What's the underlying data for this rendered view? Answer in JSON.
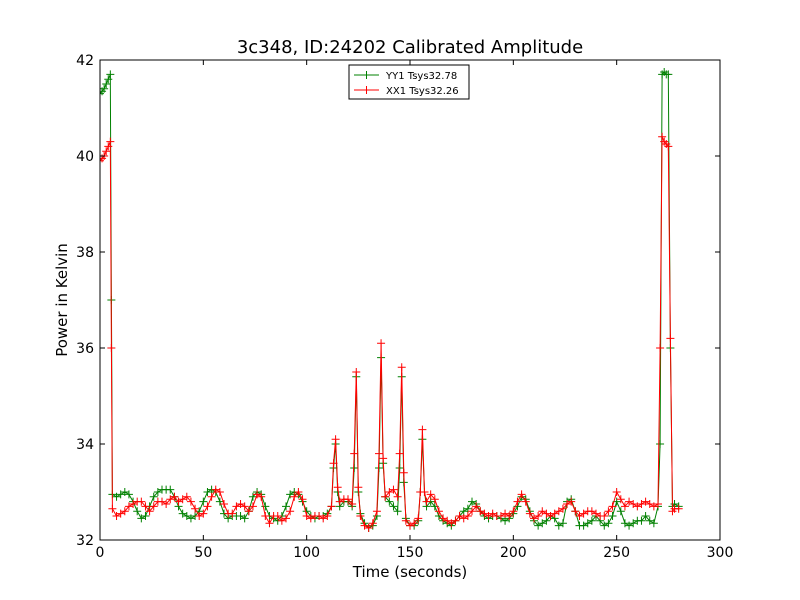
{
  "chart_data": {
    "type": "line",
    "title": "3c348, ID:24202 Calibrated Amplitude",
    "xlabel": "Time (seconds)",
    "ylabel": "Power in Kelvin",
    "xlim": [
      0,
      300
    ],
    "ylim": [
      32,
      42
    ],
    "xticks": [
      0,
      50,
      100,
      150,
      200,
      250,
      300
    ],
    "yticks": [
      32,
      34,
      36,
      38,
      40,
      42
    ],
    "grid": false,
    "legend_position": "top-center",
    "marker": "+",
    "series": [
      {
        "name": "YY1 Tsys32.78",
        "color": "#008000",
        "x": [
          0,
          1,
          2,
          3,
          4,
          5,
          5.5,
          6,
          8,
          10,
          12,
          14,
          16,
          18,
          20,
          22,
          24,
          26,
          28,
          30,
          32,
          34,
          36,
          38,
          40,
          42,
          44,
          46,
          48,
          50,
          52,
          54,
          56,
          58,
          60,
          62,
          64,
          66,
          68,
          70,
          72,
          74,
          76,
          78,
          80,
          82,
          84,
          86,
          88,
          90,
          92,
          94,
          96,
          98,
          100,
          102,
          104,
          106,
          108,
          110,
          112,
          113,
          114,
          115,
          116,
          118,
          120,
          122,
          123,
          124,
          125,
          126,
          128,
          130,
          132,
          134,
          135,
          136,
          137,
          138,
          140,
          142,
          144,
          145,
          146,
          147,
          148,
          150,
          152,
          154,
          155,
          156,
          157,
          158,
          160,
          162,
          164,
          166,
          168,
          170,
          172,
          174,
          176,
          178,
          180,
          182,
          184,
          186,
          188,
          190,
          192,
          194,
          196,
          198,
          200,
          202,
          204,
          206,
          208,
          210,
          212,
          214,
          216,
          218,
          220,
          222,
          224,
          226,
          228,
          230,
          232,
          234,
          236,
          238,
          240,
          242,
          244,
          246,
          248,
          250,
          252,
          254,
          256,
          258,
          260,
          262,
          264,
          266,
          268,
          270,
          271,
          272,
          273,
          274,
          275,
          276,
          277,
          278,
          280
        ],
        "y": [
          41.3,
          41.35,
          41.4,
          41.5,
          41.6,
          41.7,
          37.0,
          32.95,
          32.9,
          32.95,
          33.0,
          32.95,
          32.8,
          32.6,
          32.45,
          32.5,
          32.7,
          32.9,
          33.0,
          33.05,
          33.05,
          33.05,
          32.9,
          32.7,
          32.55,
          32.5,
          32.45,
          32.5,
          32.6,
          32.8,
          33.0,
          33.05,
          33.0,
          32.8,
          32.55,
          32.45,
          32.5,
          32.5,
          32.5,
          32.45,
          32.6,
          32.9,
          33.0,
          32.95,
          32.7,
          32.5,
          32.45,
          32.4,
          32.5,
          32.7,
          32.95,
          33.0,
          32.95,
          32.8,
          32.6,
          32.5,
          32.45,
          32.5,
          32.5,
          32.55,
          32.7,
          33.5,
          34.0,
          33.0,
          32.7,
          32.8,
          32.8,
          32.7,
          33.5,
          35.4,
          33.0,
          32.55,
          32.35,
          32.25,
          32.3,
          32.5,
          33.5,
          35.8,
          33.6,
          32.9,
          32.8,
          32.7,
          32.6,
          33.5,
          35.4,
          33.2,
          32.45,
          32.3,
          32.3,
          32.4,
          33.0,
          34.1,
          33.0,
          32.7,
          32.8,
          32.7,
          32.5,
          32.4,
          32.35,
          32.3,
          32.4,
          32.5,
          32.6,
          32.65,
          32.8,
          32.75,
          32.6,
          32.5,
          32.45,
          32.5,
          32.5,
          32.45,
          32.4,
          32.45,
          32.55,
          32.7,
          32.9,
          32.85,
          32.6,
          32.4,
          32.3,
          32.35,
          32.4,
          32.5,
          32.45,
          32.3,
          32.35,
          32.8,
          32.85,
          32.6,
          32.3,
          32.3,
          32.35,
          32.4,
          32.5,
          32.4,
          32.3,
          32.35,
          32.5,
          32.8,
          32.6,
          32.35,
          32.3,
          32.35,
          32.4,
          32.4,
          32.5,
          32.4,
          32.35,
          32.7,
          34.0,
          41.7,
          41.75,
          41.7,
          41.7,
          36.0,
          32.7,
          32.75,
          32.7
        ]
      },
      {
        "name": "XX1 Tsys32.26",
        "color": "#ff0000",
        "x": [
          0,
          1,
          2,
          3,
          4,
          5,
          5.5,
          6,
          8,
          10,
          12,
          14,
          16,
          18,
          20,
          22,
          24,
          26,
          28,
          30,
          32,
          34,
          36,
          38,
          40,
          42,
          44,
          46,
          48,
          50,
          52,
          54,
          56,
          58,
          60,
          62,
          64,
          66,
          68,
          70,
          72,
          74,
          76,
          78,
          80,
          82,
          84,
          86,
          88,
          90,
          92,
          94,
          96,
          98,
          100,
          102,
          104,
          106,
          108,
          110,
          112,
          113,
          114,
          115,
          116,
          118,
          120,
          122,
          123,
          124,
          125,
          126,
          128,
          130,
          132,
          134,
          135,
          136,
          137,
          138,
          140,
          142,
          144,
          145,
          146,
          147,
          148,
          150,
          152,
          154,
          155,
          156,
          157,
          158,
          160,
          162,
          164,
          166,
          168,
          170,
          172,
          174,
          176,
          178,
          180,
          182,
          184,
          186,
          188,
          190,
          192,
          194,
          196,
          198,
          200,
          202,
          204,
          206,
          208,
          210,
          212,
          214,
          216,
          218,
          220,
          222,
          224,
          226,
          228,
          230,
          232,
          234,
          236,
          238,
          240,
          242,
          244,
          246,
          248,
          250,
          252,
          254,
          256,
          258,
          260,
          262,
          264,
          266,
          268,
          270,
          271,
          272,
          273,
          274,
          275,
          276,
          277,
          278,
          280
        ],
        "y": [
          39.9,
          39.95,
          40.0,
          40.1,
          40.2,
          40.3,
          36.0,
          32.65,
          32.5,
          32.55,
          32.6,
          32.7,
          32.75,
          32.8,
          32.8,
          32.7,
          32.6,
          32.7,
          32.8,
          32.8,
          32.75,
          32.85,
          32.9,
          32.8,
          32.85,
          32.9,
          32.8,
          32.65,
          32.5,
          32.55,
          32.7,
          32.9,
          33.05,
          33.0,
          32.75,
          32.55,
          32.55,
          32.7,
          32.75,
          32.7,
          32.6,
          32.7,
          32.95,
          32.9,
          32.5,
          32.35,
          32.5,
          32.5,
          32.4,
          32.45,
          32.6,
          32.9,
          33.0,
          32.85,
          32.5,
          32.45,
          32.5,
          32.5,
          32.45,
          32.5,
          32.7,
          33.6,
          34.1,
          33.1,
          32.8,
          32.85,
          32.85,
          32.75,
          33.8,
          35.5,
          33.1,
          32.5,
          32.3,
          32.25,
          32.35,
          32.6,
          33.8,
          36.1,
          33.7,
          32.9,
          33.0,
          33.05,
          32.9,
          33.8,
          35.6,
          33.4,
          32.4,
          32.3,
          32.35,
          32.45,
          33.0,
          34.3,
          33.0,
          32.8,
          32.95,
          32.85,
          32.6,
          32.45,
          32.4,
          32.35,
          32.4,
          32.5,
          32.45,
          32.5,
          32.6,
          32.7,
          32.6,
          32.55,
          32.5,
          32.55,
          32.5,
          32.5,
          32.55,
          32.5,
          32.6,
          32.8,
          32.95,
          32.8,
          32.55,
          32.45,
          32.5,
          32.6,
          32.55,
          32.5,
          32.55,
          32.6,
          32.65,
          32.75,
          32.8,
          32.6,
          32.5,
          32.55,
          32.6,
          32.6,
          32.55,
          32.5,
          32.5,
          32.6,
          32.7,
          33.0,
          32.85,
          32.7,
          32.8,
          32.75,
          32.7,
          32.75,
          32.8,
          32.75,
          32.7,
          32.75,
          36.0,
          40.4,
          40.3,
          40.25,
          40.2,
          36.2,
          32.6,
          32.65,
          32.65
        ]
      }
    ]
  }
}
